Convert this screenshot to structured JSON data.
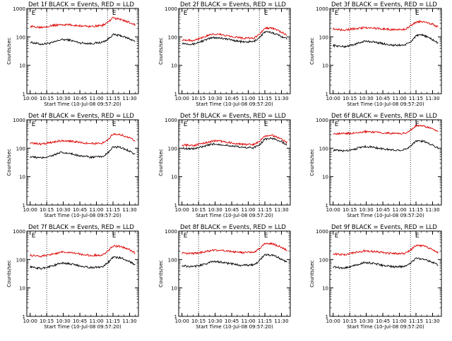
{
  "figure": {
    "panel_rows": 3,
    "panel_cols": 3
  },
  "chart_data": [
    {
      "type": "line",
      "title": "Det 1f BLACK = Events, RED = LLD",
      "xlabel": "Start Time (10-Jul-08 09:57:20)",
      "ylabel": "Counts/sec",
      "x_ticks": [
        "10:00",
        "10:15",
        "10:30",
        "10:45",
        "11:00",
        "11:15",
        "11:30"
      ],
      "y_ticks": [
        "1",
        "10",
        "100",
        "1000"
      ],
      "y_scale": "log",
      "ylim": [
        1,
        1000
      ],
      "grid": false,
      "dotted_vlines": [
        "10:15",
        "11:10"
      ],
      "markers": [
        {
          "label": "E",
          "at": "10:00"
        },
        {
          "label": "E",
          "at": "11:13"
        }
      ],
      "x": [
        "10:00",
        "10:10",
        "10:20",
        "10:28",
        "10:35",
        "10:45",
        "10:55",
        "11:05",
        "11:10",
        "11:15",
        "11:22",
        "11:30",
        "11:35"
      ],
      "series": [
        {
          "color": "#000000",
          "values": [
            65,
            55,
            62,
            80,
            78,
            62,
            58,
            64,
            80,
            120,
            110,
            85,
            70
          ]
        },
        {
          "color": "#dd0000",
          "values": [
            230,
            220,
            250,
            270,
            265,
            245,
            235,
            250,
            320,
            460,
            410,
            320,
            260
          ]
        }
      ]
    },
    {
      "type": "line",
      "title": "Det 2f BLACK = Events, RED = LLD",
      "xlabel": "Start Time (10-Jul-08 09:57:20)",
      "ylabel": "Counts/sec",
      "x_ticks": [
        "10:00",
        "10:15",
        "10:30",
        "10:45",
        "11:00",
        "11:15",
        "11:30"
      ],
      "y_ticks": [
        "1",
        "10",
        "100",
        "1000"
      ],
      "y_scale": "log",
      "ylim": [
        1,
        1000
      ],
      "grid": false,
      "dotted_vlines": [
        "10:15",
        "11:10"
      ],
      "markers": [
        {
          "label": "E",
          "at": "10:00"
        },
        {
          "label": "E",
          "at": "11:13"
        }
      ],
      "x": [
        "10:00",
        "10:10",
        "10:20",
        "10:28",
        "10:35",
        "10:45",
        "10:55",
        "11:05",
        "11:10",
        "11:15",
        "11:22",
        "11:30",
        "11:35"
      ],
      "series": [
        {
          "color": "#000000",
          "values": [
            60,
            55,
            75,
            95,
            92,
            78,
            66,
            68,
            95,
            150,
            140,
            105,
            85
          ]
        },
        {
          "color": "#dd0000",
          "values": [
            80,
            75,
            100,
            125,
            120,
            105,
            90,
            90,
            120,
            210,
            200,
            150,
            110
          ]
        }
      ]
    },
    {
      "type": "line",
      "title": "Det 3f BLACK = Events, RED = LLD",
      "xlabel": "Start Time (10-Jul-08 09:57:20)",
      "ylabel": "Counts/sec",
      "x_ticks": [
        "10:00",
        "10:15",
        "10:30",
        "10:45",
        "11:00",
        "11:15",
        "11:30"
      ],
      "y_ticks": [
        "1",
        "10",
        "100",
        "1000"
      ],
      "y_scale": "log",
      "ylim": [
        1,
        1000
      ],
      "grid": false,
      "dotted_vlines": [
        "10:15",
        "11:10"
      ],
      "markers": [
        {
          "label": "E",
          "at": "10:00"
        },
        {
          "label": "E",
          "at": "11:13"
        }
      ],
      "x": [
        "10:00",
        "10:10",
        "10:20",
        "10:28",
        "10:35",
        "10:45",
        "10:55",
        "11:05",
        "11:10",
        "11:15",
        "11:22",
        "11:30",
        "11:35"
      ],
      "series": [
        {
          "color": "#000000",
          "values": [
            50,
            45,
            55,
            70,
            68,
            58,
            50,
            52,
            65,
            110,
            115,
            80,
            60
          ]
        },
        {
          "color": "#dd0000",
          "values": [
            190,
            175,
            195,
            210,
            205,
            190,
            180,
            185,
            240,
            330,
            350,
            280,
            220
          ]
        }
      ]
    },
    {
      "type": "line",
      "title": "Det 4f BLACK = Events, RED = LLD",
      "xlabel": "Start Time (10-Jul-08 09:57:20)",
      "ylabel": "Counts/sec",
      "x_ticks": [
        "10:00",
        "10:15",
        "10:30",
        "10:45",
        "11:00",
        "11:15",
        "11:30"
      ],
      "y_ticks": [
        "1",
        "10",
        "100",
        "1000"
      ],
      "y_scale": "log",
      "ylim": [
        1,
        1000
      ],
      "grid": false,
      "dotted_vlines": [
        "10:15",
        "11:10"
      ],
      "markers": [
        {
          "label": "E",
          "at": "10:00"
        },
        {
          "label": "E",
          "at": "11:13"
        }
      ],
      "x": [
        "10:00",
        "10:10",
        "10:20",
        "10:28",
        "10:35",
        "10:45",
        "10:55",
        "11:05",
        "11:10",
        "11:15",
        "11:22",
        "11:30",
        "11:35"
      ],
      "series": [
        {
          "color": "#000000",
          "values": [
            50,
            45,
            55,
            70,
            65,
            55,
            48,
            50,
            65,
            110,
            105,
            80,
            60
          ]
        },
        {
          "color": "#dd0000",
          "values": [
            150,
            140,
            160,
            185,
            180,
            160,
            145,
            150,
            190,
            320,
            300,
            230,
            180
          ]
        }
      ]
    },
    {
      "type": "line",
      "title": "Det 5f BLACK = Events, RED = LLD",
      "xlabel": "Start Time (10-Jul-08 09:57:20)",
      "ylabel": "Counts/sec",
      "x_ticks": [
        "10:00",
        "10:15",
        "10:30",
        "10:45",
        "11:00",
        "11:15",
        "11:30"
      ],
      "y_ticks": [
        "1",
        "10",
        "100",
        "1000"
      ],
      "y_scale": "log",
      "ylim": [
        1,
        1000
      ],
      "grid": false,
      "dotted_vlines": [
        "10:15",
        "11:10"
      ],
      "markers": [
        {
          "label": "E",
          "at": "10:00"
        },
        {
          "label": "E",
          "at": "11:13"
        }
      ],
      "x": [
        "10:00",
        "10:10",
        "10:20",
        "10:28",
        "10:35",
        "10:45",
        "10:55",
        "11:05",
        "11:10",
        "11:15",
        "11:22",
        "11:30",
        "11:35"
      ],
      "series": [
        {
          "color": "#000000",
          "values": [
            100,
            95,
            115,
            140,
            135,
            120,
            105,
            105,
            130,
            210,
            220,
            170,
            130
          ]
        },
        {
          "color": "#dd0000",
          "values": [
            130,
            125,
            150,
            180,
            175,
            155,
            135,
            135,
            170,
            270,
            280,
            210,
            160
          ]
        }
      ]
    },
    {
      "type": "line",
      "title": "Det 6f BLACK = Events, RED = LLD",
      "xlabel": "Start Time (10-Jul-08 09:57:20)",
      "ylabel": "Counts/sec",
      "x_ticks": [
        "10:00",
        "10:15",
        "10:30",
        "10:45",
        "11:00",
        "11:15",
        "11:30"
      ],
      "y_ticks": [
        "1",
        "10",
        "100",
        "1000"
      ],
      "y_scale": "log",
      "ylim": [
        1,
        1000
      ],
      "grid": false,
      "dotted_vlines": [
        "10:15",
        "11:10"
      ],
      "markers": [
        {
          "label": "E",
          "at": "10:00"
        },
        {
          "label": "E",
          "at": "11:13"
        }
      ],
      "x": [
        "10:00",
        "10:10",
        "10:20",
        "10:28",
        "10:35",
        "10:45",
        "10:55",
        "11:05",
        "11:10",
        "11:15",
        "11:22",
        "11:30",
        "11:35"
      ],
      "series": [
        {
          "color": "#000000",
          "values": [
            85,
            80,
            95,
            115,
            110,
            95,
            85,
            88,
            120,
            180,
            175,
            130,
            100
          ]
        },
        {
          "color": "#dd0000",
          "values": [
            330,
            320,
            350,
            380,
            375,
            350,
            330,
            340,
            420,
            620,
            600,
            480,
            380
          ]
        }
      ]
    },
    {
      "type": "line",
      "title": "Det 7f BLACK = Events, RED = LLD",
      "xlabel": "Start Time (10-Jul-08 09:57:20)",
      "ylabel": "Counts/sec",
      "x_ticks": [
        "10:00",
        "10:15",
        "10:30",
        "10:45",
        "11:00",
        "11:15",
        "11:30"
      ],
      "y_ticks": [
        "1",
        "10",
        "100",
        "1000"
      ],
      "y_scale": "log",
      "ylim": [
        1,
        1000
      ],
      "grid": false,
      "dotted_vlines": [
        "10:15",
        "11:10"
      ],
      "markers": [
        {
          "label": "E",
          "at": "10:00"
        },
        {
          "label": "E",
          "at": "11:13"
        }
      ],
      "x": [
        "10:00",
        "10:10",
        "10:20",
        "10:28",
        "10:35",
        "10:45",
        "10:55",
        "11:05",
        "11:10",
        "11:15",
        "11:22",
        "11:30",
        "11:35"
      ],
      "series": [
        {
          "color": "#000000",
          "values": [
            55,
            48,
            60,
            75,
            72,
            60,
            52,
            55,
            75,
            120,
            115,
            85,
            65
          ]
        },
        {
          "color": "#dd0000",
          "values": [
            140,
            130,
            155,
            180,
            175,
            155,
            140,
            145,
            190,
            300,
            290,
            220,
            170
          ]
        }
      ]
    },
    {
      "type": "line",
      "title": "Det 8f BLACK = Events, RED = LLD",
      "xlabel": "Start Time (10-Jul-08 09:57:20)",
      "ylabel": "Counts/sec",
      "x_ticks": [
        "10:00",
        "10:15",
        "10:30",
        "10:45",
        "11:00",
        "11:15",
        "11:30"
      ],
      "y_ticks": [
        "1",
        "10",
        "100",
        "1000"
      ],
      "y_scale": "log",
      "ylim": [
        1,
        1000
      ],
      "grid": false,
      "dotted_vlines": [
        "10:15",
        "11:10"
      ],
      "markers": [
        {
          "label": "E",
          "at": "10:00"
        },
        {
          "label": "E",
          "at": "11:13"
        }
      ],
      "x": [
        "10:00",
        "10:10",
        "10:20",
        "10:28",
        "10:35",
        "10:45",
        "10:55",
        "11:05",
        "11:10",
        "11:15",
        "11:22",
        "11:30",
        "11:35"
      ],
      "series": [
        {
          "color": "#000000",
          "values": [
            60,
            55,
            68,
            85,
            82,
            70,
            62,
            65,
            90,
            150,
            140,
            105,
            80
          ]
        },
        {
          "color": "#dd0000",
          "values": [
            170,
            160,
            185,
            215,
            210,
            190,
            175,
            180,
            240,
            380,
            360,
            270,
            210
          ]
        }
      ]
    },
    {
      "type": "line",
      "title": "Det 9f BLACK = Events, RED = LLD",
      "xlabel": "Start Time (10-Jul-08 09:57:20)",
      "ylabel": "Counts/sec",
      "x_ticks": [
        "10:00",
        "10:15",
        "10:30",
        "10:45",
        "11:00",
        "11:15",
        "11:30"
      ],
      "y_ticks": [
        "1",
        "10",
        "100",
        "1000"
      ],
      "y_scale": "log",
      "ylim": [
        1,
        1000
      ],
      "grid": false,
      "dotted_vlines": [
        "10:15",
        "11:10"
      ],
      "markers": [
        {
          "label": "E",
          "at": "10:00"
        },
        {
          "label": "E",
          "at": "11:13"
        }
      ],
      "x": [
        "10:00",
        "10:10",
        "10:20",
        "10:28",
        "10:35",
        "10:45",
        "10:55",
        "11:05",
        "11:10",
        "11:15",
        "11:22",
        "11:30",
        "11:35"
      ],
      "series": [
        {
          "color": "#000000",
          "values": [
            55,
            50,
            62,
            78,
            75,
            62,
            55,
            58,
            75,
            110,
            105,
            80,
            62
          ]
        },
        {
          "color": "#dd0000",
          "values": [
            160,
            150,
            175,
            200,
            195,
            175,
            160,
            165,
            210,
            320,
            300,
            230,
            180
          ]
        }
      ]
    }
  ]
}
